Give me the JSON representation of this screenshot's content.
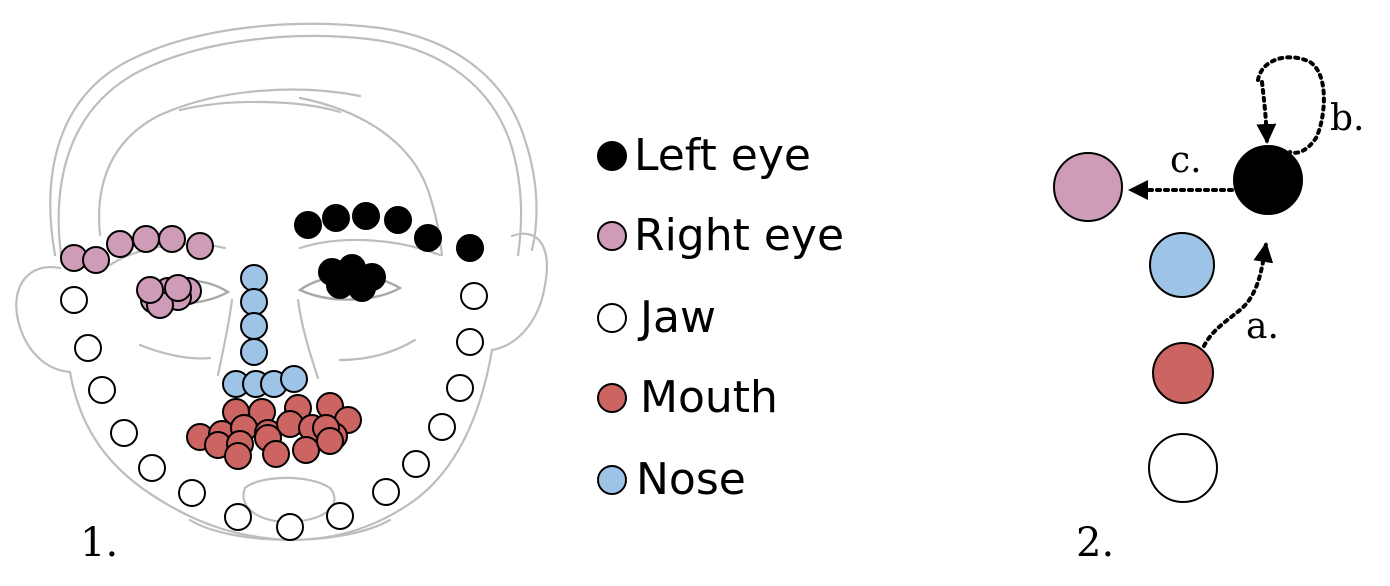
{
  "colors": {
    "left_eye": "#000000",
    "right_eye": "#cf9cb8",
    "jaw": "#ffffff",
    "mouth": "#cc6461",
    "nose": "#9dc3e6"
  },
  "legend": [
    {
      "label": "Left eye",
      "color_key": "left_eye"
    },
    {
      "label": "Right eye",
      "color_key": "right_eye"
    },
    {
      "label": "Jaw",
      "color_key": "jaw"
    },
    {
      "label": "Mouth",
      "color_key": "mouth"
    },
    {
      "label": "Nose",
      "color_key": "nose"
    }
  ],
  "panel_1_label": "1.",
  "panel_2_label": "2.",
  "graph": {
    "nodes": [
      "right_eye",
      "left_eye",
      "nose",
      "mouth",
      "jaw"
    ],
    "edges": [
      {
        "label": "a.",
        "from": "mouth",
        "to": "left_eye",
        "style": "dotted"
      },
      {
        "label": "b.",
        "from": "left_eye",
        "to": "left_eye",
        "style": "dotted"
      },
      {
        "label": "c.",
        "from": "left_eye",
        "to": "right_eye",
        "style": "dotted"
      }
    ]
  }
}
